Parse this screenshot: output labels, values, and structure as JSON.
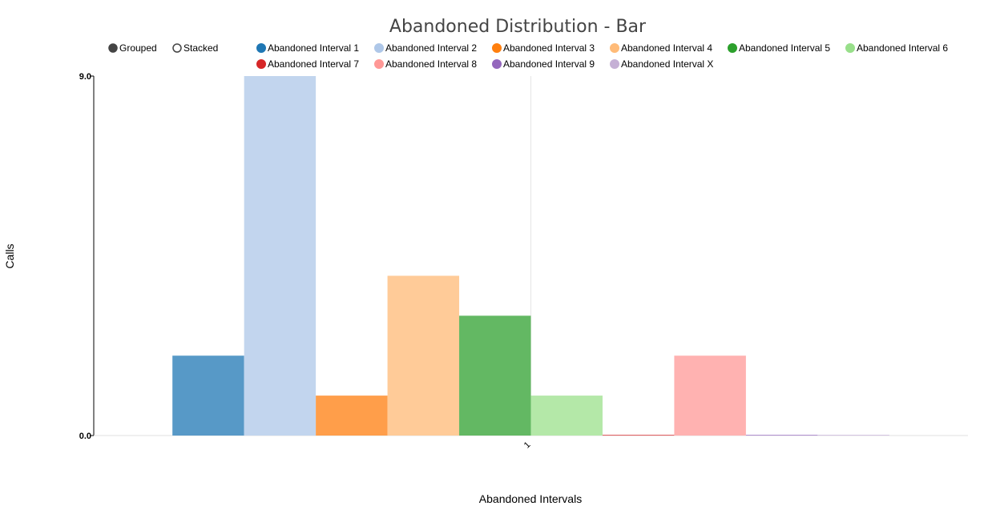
{
  "chart_data": {
    "type": "bar",
    "title": "Abandoned Distribution - Bar",
    "xlabel": "Abandoned Intervals",
    "ylabel": "Calls",
    "ylim": [
      0,
      9
    ],
    "y_ticks": [
      "0.0",
      "9.0"
    ],
    "categories": [
      "1"
    ],
    "grid": false,
    "legend_position": "top",
    "mode_controls": {
      "options": [
        "Grouped",
        "Stacked"
      ],
      "selected": "Grouped"
    },
    "series": [
      {
        "name": "Abandoned Interval 1",
        "color": "#1f77b4",
        "bar_color": "#5799c7",
        "values": [
          2
        ]
      },
      {
        "name": "Abandoned Interval 2",
        "color": "#aec7e8",
        "bar_color": "#c2d5ee",
        "values": [
          9
        ]
      },
      {
        "name": "Abandoned Interval 3",
        "color": "#ff7f0e",
        "bar_color": "#ff9e4a",
        "values": [
          1
        ]
      },
      {
        "name": "Abandoned Interval 4",
        "color": "#ffbb78",
        "bar_color": "#ffcb98",
        "values": [
          4
        ]
      },
      {
        "name": "Abandoned Interval 5",
        "color": "#2ca02c",
        "bar_color": "#63b863",
        "values": [
          3
        ]
      },
      {
        "name": "Abandoned Interval 6",
        "color": "#98df8a",
        "bar_color": "#b4e8a8",
        "values": [
          1
        ]
      },
      {
        "name": "Abandoned Interval 7",
        "color": "#d62728",
        "bar_color": "#e05d5e",
        "values": [
          0
        ]
      },
      {
        "name": "Abandoned Interval 8",
        "color": "#ff9896",
        "bar_color": "#ffb2b1",
        "values": [
          2
        ]
      },
      {
        "name": "Abandoned Interval 9",
        "color": "#9467bd",
        "bar_color": "#b08fd0",
        "values": [
          0
        ]
      },
      {
        "name": "Abandoned Interval X",
        "color": "#c5b0d5",
        "bar_color": "#d4c4e1",
        "values": [
          0
        ]
      }
    ]
  }
}
